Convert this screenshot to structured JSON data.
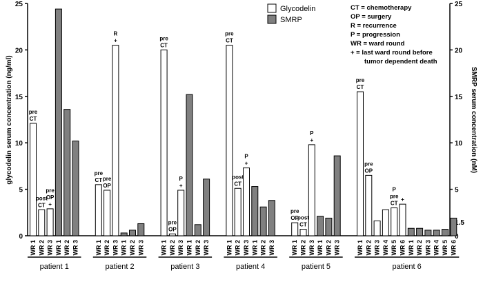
{
  "chart_data": {
    "type": "bar",
    "y_label": "glycodelin serum concentration (ng/ml)",
    "y2_label": "SMRP serum concentration (nM)",
    "ylim": [
      0,
      25
    ],
    "yticks": [
      0,
      5,
      10,
      15,
      20,
      25
    ],
    "y2lim": [
      0,
      25
    ],
    "y2ticks": [
      0,
      1.5,
      5,
      10,
      15,
      20,
      25
    ],
    "groups": [
      {
        "label": "patient 1",
        "categories": [
          "WR 1",
          "WR 2",
          "WR 3",
          "WR 1",
          "WR 2",
          "WR 3"
        ]
      },
      {
        "label": "patient 2",
        "categories": [
          "WR 1",
          "WR 2",
          "WR 3",
          "WR 1",
          "WR 2",
          "WR 3"
        ]
      },
      {
        "label": "patient 3",
        "categories": [
          "WR 1",
          "WR 2",
          "WR 3",
          "WR 1",
          "WR 2",
          "WR 3"
        ]
      },
      {
        "label": "patient 4",
        "categories": [
          "WR 1",
          "WR 2",
          "WR 3",
          "WR 1",
          "WR 2",
          "WR 3"
        ]
      },
      {
        "label": "patient 5",
        "categories": [
          "WR 1",
          "WR 2",
          "WR 3",
          "WR 1",
          "WR 2",
          "WR 3"
        ]
      },
      {
        "label": "patient 6",
        "categories": [
          "WR 1",
          "WR 2",
          "WR 3",
          "WR 4",
          "WR 5",
          "WR 6",
          "WR 1",
          "WR 2",
          "WR 3",
          "WR 4",
          "WR 5",
          "WR 6"
        ]
      }
    ],
    "series": [
      {
        "name": "Glycodelin",
        "color": "#ffffff",
        "values": [
          12.1,
          2.8,
          2.9,
          null,
          null,
          null,
          5.5,
          4.9,
          20.5,
          null,
          null,
          null,
          20.0,
          0.2,
          4.9,
          null,
          null,
          null,
          20.5,
          5.1,
          7.3,
          null,
          null,
          null,
          1.4,
          0.7,
          9.8,
          null,
          null,
          null,
          15.5,
          6.5,
          1.6,
          2.8,
          3.0,
          3.4,
          null,
          null,
          null,
          null,
          null,
          null
        ]
      },
      {
        "name": "SMRP",
        "color": "#808080",
        "axis": "y2",
        "values": [
          null,
          null,
          null,
          24.4,
          13.6,
          10.2,
          null,
          null,
          null,
          0.3,
          0.6,
          1.3,
          null,
          null,
          null,
          15.2,
          1.2,
          6.1,
          null,
          null,
          null,
          5.3,
          3.1,
          3.8,
          null,
          null,
          null,
          2.1,
          1.9,
          8.6,
          null,
          null,
          null,
          null,
          null,
          null,
          0.8,
          0.8,
          0.6,
          0.6,
          0.7,
          1.9
        ]
      }
    ],
    "bar_notes": [
      [
        "pre",
        "CT"
      ],
      [
        "post",
        "CT"
      ],
      [
        "pre",
        "OP",
        "+"
      ],
      null,
      null,
      null,
      [
        "pre",
        "CT"
      ],
      [
        "pre",
        "OP"
      ],
      [
        "R",
        "+"
      ],
      null,
      null,
      null,
      [
        "pre",
        "CT"
      ],
      [
        "pre",
        "OP"
      ],
      [
        "P",
        "+"
      ],
      null,
      null,
      null,
      [
        "pre",
        "CT"
      ],
      [
        "post",
        "CT"
      ],
      [
        "P",
        "+"
      ],
      null,
      null,
      null,
      [
        "pre",
        "OP"
      ],
      [
        "post",
        "CT"
      ],
      [
        "P",
        "+"
      ],
      null,
      null,
      null,
      [
        "pre",
        "CT"
      ],
      [
        "pre",
        "OP"
      ],
      null,
      null,
      [
        "P",
        "pre",
        "CT"
      ],
      [
        "+"
      ],
      null,
      null,
      null,
      null,
      null,
      null
    ],
    "notes": [
      "CT = chemotherapy",
      "OP = surgery",
      "R = recurrence",
      "P = progression",
      "WR =  ward round",
      "+ = last ward round before",
      "tumor dependent death"
    ]
  }
}
